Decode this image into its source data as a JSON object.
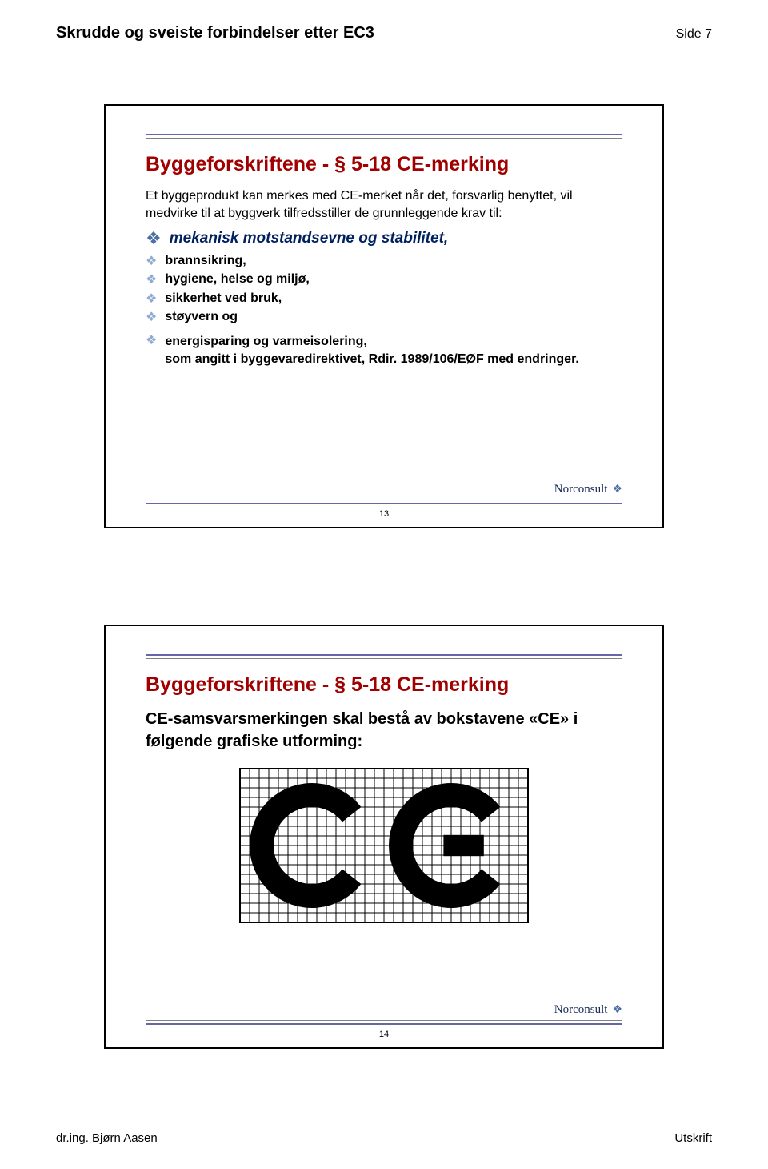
{
  "header": {
    "title": "Skrudde og sveiste forbindelser etter EC3",
    "page_label": "Side 7"
  },
  "slide1": {
    "title": "Byggeforskriftene - § 5-18 CE-merking",
    "intro": "Et byggeprodukt kan merkes med CE-merket når det, forsvarlig benyttet, vil medvirke til at byggverk tilfredsstiller de grunnleggende krav til:",
    "main_bullet": "mekanisk motstandsevne og stabilitet,",
    "bullets": [
      "brannsikring,",
      "hygiene, helse og miljø,",
      "sikkerhet ved bruk,",
      "støyvern og"
    ],
    "last_bullet": "energisparing og varmeisolering,\nsom angitt i byggevaredirektivet, Rdir. 1989/106/EØF med endringer.",
    "brand": "Norconsult",
    "num": "13"
  },
  "slide2": {
    "title": "Byggeforskriftene - § 5-18 CE-merking",
    "body": "CE-samsvarsmerkingen skal bestå av bokstavene «CE» i følgende grafiske utforming:",
    "brand": "Norconsult",
    "num": "14",
    "ce_grid": {
      "cols": 30,
      "rows": 16,
      "cell": 12,
      "stroke": "#000000",
      "stroke_width": 1,
      "fill": "#000000"
    }
  },
  "footer": {
    "left": "dr.ing. Bjørn Aasen",
    "right": "Utskrift"
  },
  "colors": {
    "title": "#a00000",
    "bullet_icon_main": "#4a6fa5",
    "bullet_icon_sub": "#8faad0",
    "emph_text": "#002060",
    "rule": "#6666aa",
    "brand": "#152a56"
  }
}
